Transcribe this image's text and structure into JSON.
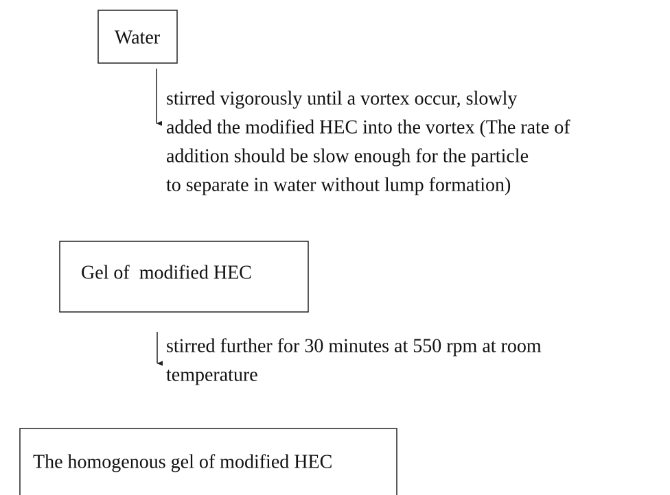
{
  "nodes": [
    {
      "label": "Water"
    },
    {
      "label": "Gel of  modified HEC"
    },
    {
      "label": "The homogenous gel of modified HEC"
    }
  ],
  "steps": [
    {
      "lines": [
        "stirred vigorously until a vortex occur, slowly",
        "added the modified HEC into the vortex (The rate of",
        "addition should be slow enough for the particle",
        "to separate in water without lump formation)"
      ]
    },
    {
      "lines": [
        "stirred further for 30 minutes at 550 rpm at room",
        "temperature"
      ]
    }
  ]
}
